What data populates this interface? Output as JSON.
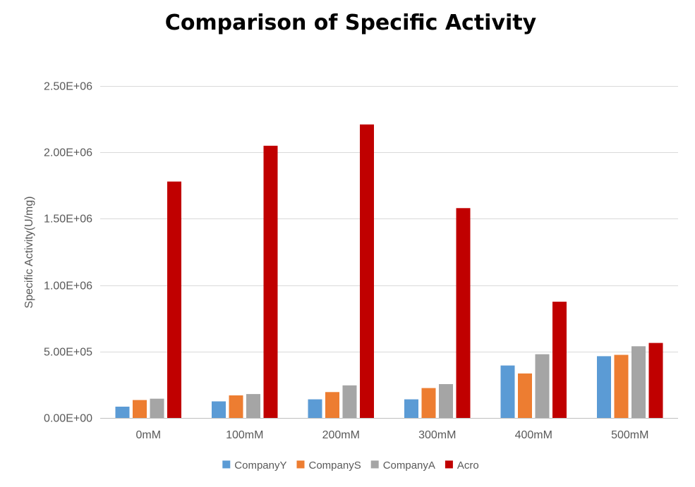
{
  "chart_data": {
    "type": "bar",
    "title": "Comparison of  Specific Activity",
    "xlabel": "",
    "ylabel": "Specific Activity(U/mg)",
    "categories": [
      "0mM",
      "100mM",
      "200mM",
      "300mM",
      "400mM",
      "500mM"
    ],
    "ylim": [
      0,
      2500000
    ],
    "yticks": [
      0,
      500000,
      1000000,
      1500000,
      2000000,
      2500000
    ],
    "ytick_labels": [
      "0.00E+00",
      "5.00E+05",
      "1.00E+06",
      "1.50E+06",
      "2.00E+06",
      "2.50E+06"
    ],
    "grid": true,
    "legend_position": "bottom",
    "series": [
      {
        "name": "CompanyY",
        "color": "#5B9BD5",
        "values": [
          85000,
          125000,
          140000,
          140000,
          395000,
          465000
        ]
      },
      {
        "name": "CompanyS",
        "color": "#ED7D31",
        "values": [
          135000,
          170000,
          195000,
          225000,
          335000,
          475000
        ]
      },
      {
        "name": "CompanyA",
        "color": "#A5A5A5",
        "values": [
          145000,
          180000,
          245000,
          255000,
          480000,
          540000
        ]
      },
      {
        "name": "Acro",
        "color": "#C00000",
        "values": [
          1780000,
          2050000,
          2210000,
          1580000,
          875000,
          565000
        ]
      }
    ]
  }
}
